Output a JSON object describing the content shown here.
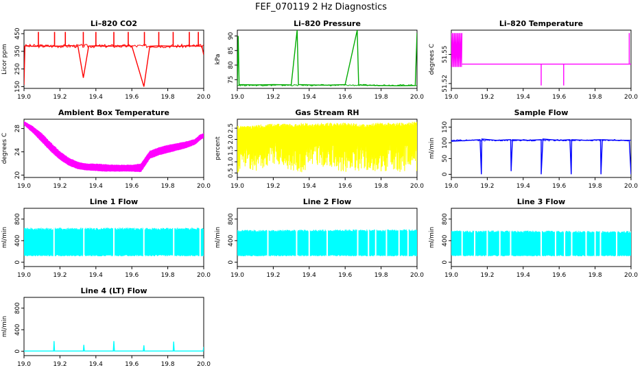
{
  "page": {
    "title": "FEF_070119  2 Hz Diagnostics"
  },
  "chart_data": [
    {
      "id": "co2",
      "type": "line",
      "title": "Li–820 CO2",
      "ylabel": "Licor ppm",
      "xlabel": "",
      "color": "#ff0000",
      "xlim": [
        19.0,
        20.0
      ],
      "ylim": [
        140,
        470
      ],
      "yticks": [
        150,
        250,
        350,
        450
      ],
      "ytick_labels": [
        "150",
        "250",
        "350",
        "450"
      ],
      "xticks": [
        19.0,
        19.2,
        19.4,
        19.6,
        19.8,
        20.0
      ],
      "xtick_labels": [
        "19.0",
        "19.2",
        "19.4",
        "19.6",
        "19.8",
        "20.0"
      ],
      "series": [
        {
          "x": [
            19.0,
            19.005,
            19.01,
            19.06,
            19.1,
            19.15,
            19.2,
            19.25,
            19.3,
            19.33,
            19.36,
            19.4,
            19.45,
            19.5,
            19.55,
            19.6,
            19.667,
            19.7,
            19.75,
            19.8,
            19.85,
            19.9,
            19.95,
            19.99,
            20.0
          ],
          "y": [
            160,
            380,
            382,
            378,
            381,
            379,
            380,
            383,
            379,
            200,
            380,
            381,
            379,
            380,
            382,
            380,
            150,
            379,
            381,
            380,
            378,
            381,
            380,
            379,
            330
          ]
        }
      ],
      "spikes": [
        {
          "x": [
            19.08,
            19.17,
            19.23,
            19.33,
            19.4,
            19.5,
            19.58,
            19.67,
            19.75,
            19.83,
            19.92,
            19.97
          ],
          "y": [
            460,
            460,
            460,
            460,
            460,
            460,
            460,
            460,
            460,
            460,
            460,
            460
          ]
        }
      ]
    },
    {
      "id": "pressure",
      "type": "line",
      "title": "Li–820 Pressure",
      "ylabel": "kPa",
      "xlabel": "",
      "color": "#00aa00",
      "xlim": [
        19.0,
        20.0
      ],
      "ylim": [
        72,
        92
      ],
      "yticks": [
        75,
        80,
        85,
        90
      ],
      "ytick_labels": [
        "75",
        "80",
        "85",
        "90"
      ],
      "xticks": [
        19.0,
        19.2,
        19.4,
        19.6,
        19.8,
        20.0
      ],
      "xtick_labels": [
        "19.0",
        "19.2",
        "19.4",
        "19.6",
        "19.8",
        "20.0"
      ],
      "series": [
        {
          "x": [
            19.0,
            19.005,
            19.01,
            19.1,
            19.2,
            19.3,
            19.333,
            19.34,
            19.4,
            19.5,
            19.6,
            19.667,
            19.675,
            19.7,
            19.8,
            19.9,
            19.99,
            20.0
          ],
          "y": [
            73.2,
            90,
            73.3,
            73.2,
            73.3,
            73.2,
            92,
            73.3,
            73.2,
            73.1,
            73.3,
            92,
            73.2,
            73.1,
            73.0,
            72.9,
            73.0,
            91
          ]
        }
      ]
    },
    {
      "id": "licor-temp",
      "type": "line",
      "title": "Li–820 Temperature",
      "ylabel": "degrees C",
      "xlabel": "",
      "color": "#ff00ff",
      "xlim": [
        19.0,
        20.0
      ],
      "ylim": [
        51.515,
        51.575
      ],
      "yticks": [
        51.52,
        51.55
      ],
      "ytick_labels": [
        "51.52",
        "51.55"
      ],
      "xticks": [
        19.0,
        19.2,
        19.4,
        19.6,
        19.8,
        20.0
      ],
      "xtick_labels": [
        "19.0",
        "19.2",
        "19.4",
        "19.6",
        "19.8",
        "20.0"
      ],
      "series": [
        {
          "x": [
            19.06,
            19.2,
            19.4,
            19.5,
            19.5,
            19.5,
            19.6,
            19.625,
            19.625,
            19.625,
            19.8,
            19.99,
            19.99,
            19.99,
            20.0
          ],
          "y": [
            51.54,
            51.54,
            51.54,
            51.54,
            51.518,
            51.54,
            51.54,
            51.54,
            51.518,
            51.54,
            51.54,
            51.54,
            51.572,
            51.54,
            51.54
          ]
        }
      ],
      "noise_band": {
        "x_from": 19.0,
        "x_to": 19.06,
        "y_from": 51.537,
        "y_to": 51.572
      }
    },
    {
      "id": "box-temp",
      "type": "area",
      "title": "Ambient Box Temperature",
      "ylabel": "degrees C",
      "xlabel": "",
      "color": "#ff00ff",
      "xlim": [
        19.0,
        20.0
      ],
      "ylim": [
        19.6,
        29.6
      ],
      "yticks": [
        20,
        24,
        28
      ],
      "ytick_labels": [
        "20",
        "24",
        "28"
      ],
      "xticks": [
        19.0,
        19.2,
        19.4,
        19.6,
        19.8,
        20.0
      ],
      "xtick_labels": [
        "19.0",
        "19.2",
        "19.4",
        "19.6",
        "19.8",
        "20.0"
      ],
      "band": {
        "x": [
          19.0,
          19.05,
          19.1,
          19.15,
          19.2,
          19.25,
          19.3,
          19.35,
          19.4,
          19.45,
          19.5,
          19.55,
          19.6,
          19.65,
          19.7,
          19.75,
          19.8,
          19.85,
          19.9,
          19.95,
          19.98,
          20.0
        ],
        "upper": [
          29.3,
          28.4,
          27.2,
          25.6,
          24.1,
          23.0,
          22.3,
          22.0,
          22.0,
          21.9,
          21.8,
          21.8,
          21.8,
          22.0,
          24.2,
          24.8,
          25.2,
          25.5,
          25.8,
          26.2,
          27.0,
          27.2
        ],
        "lower": [
          28.6,
          27.2,
          25.6,
          24.0,
          22.6,
          21.6,
          21.0,
          20.8,
          20.7,
          20.6,
          20.6,
          20.6,
          20.6,
          20.5,
          22.8,
          23.4,
          23.8,
          24.2,
          24.6,
          25.2,
          26.0,
          26.4
        ]
      }
    },
    {
      "id": "rh",
      "type": "area",
      "title": "Gas Stream RH",
      "ylabel": "percent",
      "xlabel": "",
      "color": "#ffff00",
      "xlim": [
        19.0,
        20.0
      ],
      "ylim": [
        0.3,
        2.9
      ],
      "yticks": [
        0.5,
        1.0,
        1.5,
        2.0,
        2.5
      ],
      "ytick_labels": [
        "0.5",
        "1.0",
        "1.5",
        "2.0",
        "2.5"
      ],
      "xticks": [
        19.0,
        19.2,
        19.4,
        19.6,
        19.8,
        20.0
      ],
      "xtick_labels": [
        "19.0",
        "19.2",
        "19.4",
        "19.6",
        "19.8",
        "20.0"
      ],
      "band": {
        "x": [
          19.0,
          19.1,
          19.2,
          19.3,
          19.37,
          19.4,
          19.5,
          19.6,
          19.7,
          19.8,
          19.9,
          20.0
        ],
        "upper": [
          2.6,
          2.65,
          2.7,
          2.7,
          2.75,
          2.7,
          2.75,
          2.75,
          2.7,
          2.75,
          2.75,
          2.8
        ],
        "lower": [
          0.5,
          0.55,
          0.9,
          0.6,
          0.5,
          0.9,
          0.6,
          0.55,
          0.6,
          0.55,
          0.55,
          0.5
        ]
      }
    },
    {
      "id": "sample-flow",
      "type": "line",
      "title": "Sample Flow",
      "ylabel": "ml/min",
      "xlabel": "",
      "color": "#0000ff",
      "xlim": [
        19.0,
        20.0
      ],
      "ylim": [
        -10,
        175
      ],
      "yticks": [
        0,
        50,
        100,
        150
      ],
      "ytick_labels": [
        "0",
        "50",
        "100",
        "150"
      ],
      "xticks": [
        19.0,
        19.2,
        19.4,
        19.6,
        19.8,
        20.0
      ],
      "xtick_labels": [
        "19.0",
        "19.2",
        "19.4",
        "19.6",
        "19.8",
        "20.0"
      ],
      "series": [
        {
          "x": [
            19.0,
            19.1,
            19.16,
            19.167,
            19.17,
            19.25,
            19.33,
            19.333,
            19.34,
            19.42,
            19.5,
            19.5,
            19.51,
            19.6,
            19.66,
            19.667,
            19.67,
            19.75,
            19.83,
            19.833,
            19.84,
            19.92,
            19.99,
            20.0
          ],
          "y": [
            105,
            108,
            110,
            0,
            112,
            108,
            110,
            10,
            110,
            108,
            110,
            0,
            112,
            108,
            110,
            0,
            110,
            108,
            110,
            0,
            110,
            108,
            108,
            0
          ]
        }
      ]
    },
    {
      "id": "line1",
      "type": "area",
      "title": "Line 1 Flow",
      "ylabel": "ml/min",
      "xlabel": "",
      "color": "#00ffff",
      "xlim": [
        19.0,
        20.0
      ],
      "ylim": [
        -80,
        1000
      ],
      "yticks": [
        0,
        400,
        800
      ],
      "ytick_labels": [
        "0",
        "400",
        "800"
      ],
      "xticks": [
        19.0,
        19.2,
        19.4,
        19.6,
        19.8,
        20.0
      ],
      "xtick_labels": [
        "19.0",
        "19.2",
        "19.4",
        "19.6",
        "19.8",
        "20.0"
      ],
      "band": {
        "x": [
          19.0,
          20.0
        ],
        "upper": [
          640,
          640
        ],
        "lower": [
          110,
          110
        ]
      },
      "gaps": [
        19.167,
        19.333,
        19.5,
        19.667,
        19.833,
        19.98
      ]
    },
    {
      "id": "line2",
      "type": "area",
      "title": "Line 2 Flow",
      "ylabel": "ml/min",
      "xlabel": "",
      "color": "#00ffff",
      "xlim": [
        19.0,
        20.0
      ],
      "ylim": [
        -80,
        1000
      ],
      "yticks": [
        0,
        400,
        800
      ],
      "ytick_labels": [
        "0",
        "400",
        "800"
      ],
      "xticks": [
        19.0,
        19.2,
        19.4,
        19.6,
        19.8,
        20.0
      ],
      "xtick_labels": [
        "19.0",
        "19.2",
        "19.4",
        "19.6",
        "19.8",
        "20.0"
      ],
      "band": {
        "x": [
          19.0,
          20.0
        ],
        "upper": [
          600,
          610
        ],
        "lower": [
          110,
          110
        ]
      },
      "gaps": [
        19.17,
        19.33,
        19.4,
        19.5,
        19.67,
        19.73,
        19.77,
        19.83,
        19.9,
        19.95
      ]
    },
    {
      "id": "line3",
      "type": "area",
      "title": "Line 3 Flow",
      "ylabel": "ml/min",
      "xlabel": "",
      "color": "#00ffff",
      "xlim": [
        19.0,
        20.0
      ],
      "ylim": [
        -80,
        1000
      ],
      "yticks": [
        0,
        400,
        800
      ],
      "ytick_labels": [
        "0",
        "400",
        "800"
      ],
      "xticks": [
        19.0,
        19.2,
        19.4,
        19.6,
        19.8,
        20.0
      ],
      "xtick_labels": [
        "19.0",
        "19.2",
        "19.4",
        "19.6",
        "19.8",
        "20.0"
      ],
      "band": {
        "x": [
          19.0,
          20.0
        ],
        "upper": [
          590,
          580
        ],
        "lower": [
          110,
          110
        ]
      },
      "gaps": [
        19.06,
        19.13,
        19.2,
        19.27,
        19.33,
        19.5,
        19.58,
        19.63,
        19.67,
        19.75,
        19.8,
        19.83,
        19.92
      ]
    },
    {
      "id": "line4",
      "type": "line",
      "title": "Line 4 (LT) Flow",
      "ylabel": "ml/min",
      "xlabel": "",
      "color": "#00ffff",
      "xlim": [
        19.0,
        20.0
      ],
      "ylim": [
        -80,
        1000
      ],
      "yticks": [
        0,
        400,
        800
      ],
      "ytick_labels": [
        "0",
        "400",
        "800"
      ],
      "xticks": [
        19.0,
        19.2,
        19.4,
        19.6,
        19.8,
        20.0
      ],
      "xtick_labels": [
        "19.0",
        "19.2",
        "19.4",
        "19.6",
        "19.8",
        "20.0"
      ],
      "series": [
        {
          "x": [
            19.0,
            19.165,
            19.167,
            19.17,
            19.33,
            19.333,
            19.336,
            19.497,
            19.5,
            19.503,
            19.664,
            19.667,
            19.67,
            19.83,
            19.833,
            19.836,
            19.997,
            20.0
          ],
          "y": [
            5,
            5,
            190,
            5,
            5,
            120,
            5,
            5,
            190,
            5,
            5,
            110,
            5,
            5,
            180,
            5,
            5,
            80
          ]
        }
      ]
    }
  ]
}
